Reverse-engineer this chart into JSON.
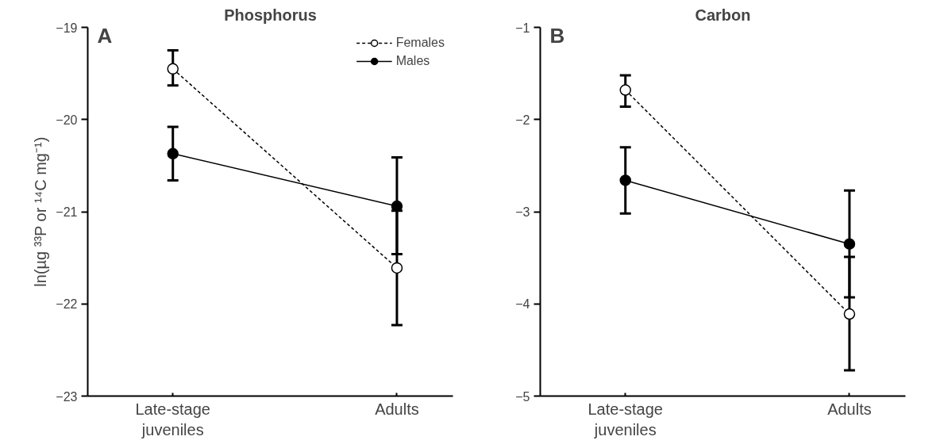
{
  "chart_data": [
    {
      "type": "line",
      "title": "Phosphorus",
      "ylabel": "ln(µg ³³P or ¹⁴C mg⁻¹)",
      "annotations": [
        "A"
      ],
      "categories": [
        "Late-stage\njuveniles",
        "Adults"
      ],
      "ylim": [
        -23,
        -19
      ],
      "yticks": [
        -23,
        -22,
        -21,
        -20,
        -19
      ],
      "grid": false,
      "legend": "top right",
      "marker": "circle",
      "series": [
        {
          "name": "Females",
          "color": "#000000",
          "line_style": "dashed",
          "values": [
            -19.45,
            -21.61
          ],
          "errors": [
            [
              -19.63,
              -19.25
            ],
            [
              -22.23,
              -20.99
            ]
          ]
        },
        {
          "name": "Males",
          "color": "#000000",
          "line_style": "solid",
          "values": [
            -20.37,
            -20.94
          ],
          "errors": [
            [
              -20.66,
              -20.08
            ],
            [
              -21.46,
              -20.41
            ]
          ]
        }
      ]
    },
    {
      "type": "line",
      "title": "Carbon",
      "annotations": [
        "B"
      ],
      "categories": [
        "Late-stage\njuveniles",
        "Adults"
      ],
      "ylim": [
        -5,
        -1
      ],
      "yticks": [
        -5,
        -4,
        -3,
        -2,
        -1
      ],
      "grid": false,
      "legend": false,
      "marker": "circle",
      "series": [
        {
          "color": "#000000",
          "line_style": "dashed",
          "values": [
            -1.68,
            -4.11
          ],
          "errors": [
            [
              -1.86,
              -1.52
            ],
            [
              -4.72,
              -3.49
            ]
          ]
        },
        {
          "color": "#000000",
          "line_style": "solid",
          "values": [
            -2.66,
            -3.35
          ],
          "errors": [
            [
              -3.02,
              -2.3
            ],
            [
              -3.93,
              -2.77
            ]
          ]
        }
      ]
    }
  ]
}
